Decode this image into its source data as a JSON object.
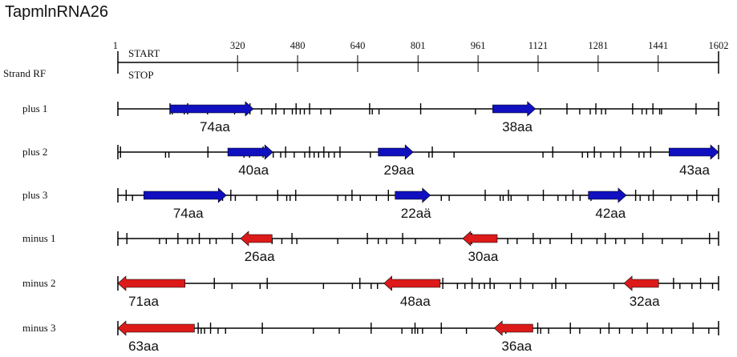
{
  "title": "TapmlnRNA26",
  "ruler": {
    "row_label": "Strand RF",
    "ticks": [
      "1",
      "320",
      "480",
      "640",
      "801",
      "961",
      "1121",
      "1281",
      "1441",
      "1602"
    ],
    "start_label": "START",
    "stop_label": "STOP",
    "max": 1602
  },
  "colors": {
    "plus": "#1010c0",
    "minus": "#dd1a1a",
    "line": "#000000"
  },
  "rows": [
    {
      "label": "plus  1",
      "strand": "plus",
      "orfs": [
        {
          "start": 140,
          "end": 362,
          "label": "74aa"
        },
        {
          "start": 1000,
          "end": 1114,
          "label": "38aa"
        }
      ],
      "ticks": [
        140,
        146,
        178,
        187,
        240,
        312,
        353,
        384,
        412,
        422,
        444,
        466,
        476,
        487,
        498,
        512,
        542,
        568,
        672,
        679,
        697,
        808,
        954,
        1127,
        1198,
        1232,
        1260,
        1275,
        1290,
        1301,
        1373,
        1398,
        1410,
        1427,
        1445,
        1450,
        1542
      ]
    },
    {
      "label": "plus  2",
      "strand": "plus",
      "orfs": [
        {
          "start": 294,
          "end": 414,
          "label": "40aa"
        },
        {
          "start": 695,
          "end": 788,
          "label": "29aa"
        },
        {
          "start": 1470,
          "end": 1602,
          "label": "43aa"
        }
      ],
      "ticks": [
        8,
        128,
        137,
        241,
        337,
        352,
        388,
        415,
        435,
        448,
        471,
        499,
        512,
        524,
        536,
        550,
        563,
        578,
        593,
        674,
        830,
        839,
        897,
        1134,
        1160,
        1239,
        1253,
        1271,
        1288,
        1323,
        1341,
        1390,
        1403,
        1421
      ]
    },
    {
      "label": "plus  3",
      "strand": "plus",
      "orfs": [
        {
          "start": 70,
          "end": 290,
          "label": "74aa"
        },
        {
          "start": 740,
          "end": 834,
          "label": "22aä"
        },
        {
          "start": 1255,
          "end": 1356,
          "label": "42aa"
        }
      ],
      "ticks": [
        23,
        40,
        280,
        302,
        314,
        371,
        427,
        451,
        460,
        475,
        587,
        608,
        625,
        647,
        690,
        722,
        863,
        884,
        980,
        1020,
        1028,
        1042,
        1049,
        1094,
        1135,
        1174,
        1195,
        1214,
        1233,
        1262,
        1381,
        1393,
        1416,
        1428,
        1475,
        1520,
        1544,
        1586
      ]
    },
    {
      "label": "minus 1",
      "strand": "minus",
      "orfs": [
        {
          "start": 328,
          "end": 412,
          "label": "26aa"
        },
        {
          "start": 920,
          "end": 1012,
          "label": "30aa"
        }
      ],
      "ticks": [
        25,
        112,
        130,
        161,
        187,
        199,
        218,
        246,
        263,
        306,
        412,
        438,
        465,
        478,
        587,
        666,
        695,
        717,
        760,
        794,
        859,
        944,
        1040,
        1065,
        1108,
        1127,
        1153,
        1210,
        1237,
        1278,
        1300,
        1328,
        1352,
        1400,
        1452,
        1504,
        1578
      ]
    },
    {
      "label": "minus 2",
      "strand": "minus",
      "orfs": [
        {
          "start": 1,
          "end": 180,
          "label": "71aa"
        },
        {
          "start": 710,
          "end": 860,
          "label": "48aa"
        },
        {
          "start": 1350,
          "end": 1442,
          "label": "32aa"
        }
      ],
      "ticks": [
        258,
        305,
        380,
        399,
        549,
        626,
        646,
        676,
        693,
        867,
        906,
        926,
        945,
        964,
        978,
        993,
        1004,
        1047,
        1074,
        1107,
        1158,
        1168,
        1195,
        1323,
        1482,
        1499,
        1531,
        1554,
        1586
      ]
    },
    {
      "label": "minus 3",
      "strand": "minus",
      "orfs": [
        {
          "start": 1,
          "end": 205,
          "label": "63aa"
        },
        {
          "start": 1004,
          "end": 1107,
          "label": "36aa"
        }
      ],
      "ticks": [
        215,
        223,
        232,
        248,
        268,
        288,
        386,
        522,
        591,
        676,
        758,
        785,
        793,
        800,
        813,
        863,
        930,
        1035,
        1120,
        1128,
        1149,
        1207,
        1232,
        1287,
        1310,
        1338,
        1372,
        1412,
        1454,
        1477,
        1534,
        1576
      ]
    }
  ]
}
